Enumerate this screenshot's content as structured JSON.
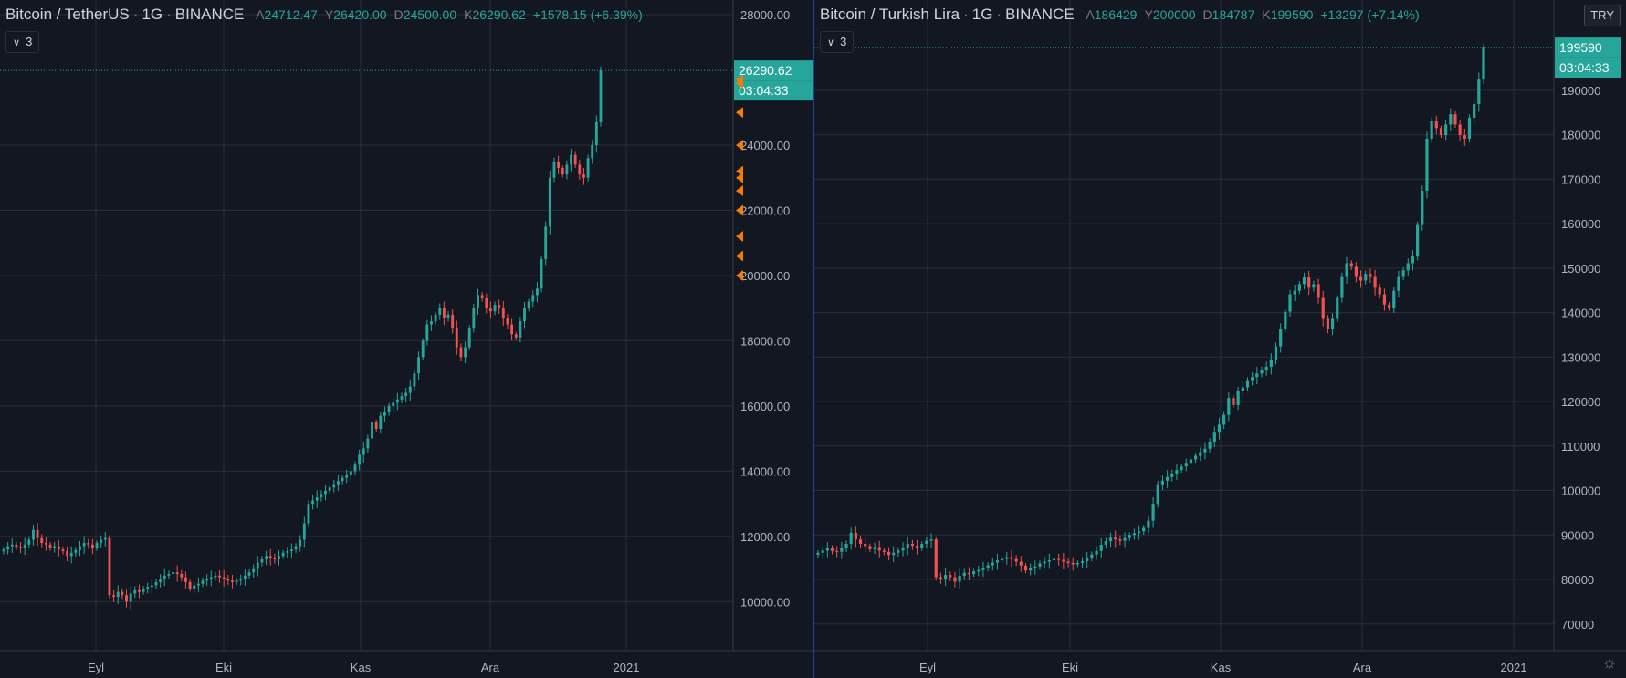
{
  "left": {
    "legend": {
      "symbol": "Bitcoin / TetherUS",
      "interval": "1G",
      "exchange": "BINANCE",
      "open_label": "A",
      "open": "24712.47",
      "high_label": "Y",
      "high": "26420.00",
      "low_label": "D",
      "low": "24500.00",
      "close_label": "K",
      "close": "26290.62",
      "change": "+1578.15 (+6.39%)"
    },
    "collapse_label": "3",
    "price_tag": "26290.62",
    "countdown": "03:04:33"
  },
  "right": {
    "legend": {
      "symbol": "Bitcoin / Turkish Lira",
      "interval": "1G",
      "exchange": "BINANCE",
      "open_label": "A",
      "open": "186429",
      "high_label": "Y",
      "high": "200000",
      "low_label": "D",
      "low": "184787",
      "close_label": "K",
      "close": "199590",
      "change": "+13297 (+7.14%)"
    },
    "collapse_label": "3",
    "currency_button": "TRY",
    "price_tag": "199590",
    "countdown": "03:04:33"
  },
  "colors": {
    "bg": "#131722",
    "up": "#26a69a",
    "down": "#ef5350",
    "grid": "#2a2e39",
    "text": "#b2b5be",
    "marker": "#f57c00",
    "divider": "#2962ff"
  },
  "chart_data": [
    {
      "type": "candlestick",
      "title": "Bitcoin / TetherUS",
      "xlabel": "",
      "ylabel": "",
      "x_ticks": [
        "Eyl",
        "Eki",
        "Kas",
        "Ara",
        "2021"
      ],
      "y_ticks": [
        "10000.00",
        "12000.00",
        "14000.00",
        "16000.00",
        "18000.00",
        "20000.00",
        "22000.00",
        "24000.00",
        "28000.00"
      ],
      "ylim": [
        8500,
        28000
      ],
      "grid": true,
      "series": [
        {
          "values": [
            11600,
            11700,
            11750,
            11680,
            11650,
            11750,
            11900,
            12200,
            11950,
            11800,
            11750,
            11650,
            11700,
            11600,
            11550,
            11400,
            11500,
            11580,
            11700,
            11800,
            11750,
            11650,
            11800,
            11900,
            11950,
            10200,
            10150,
            10300,
            10200,
            10000,
            10250,
            10350,
            10300,
            10400,
            10450,
            10500,
            10600,
            10700,
            10800,
            10850,
            10900,
            10850,
            10750,
            10600,
            10400,
            10500,
            10550,
            10650,
            10700,
            10750,
            10800,
            10750,
            10700,
            10650,
            10600,
            10650,
            10700,
            10800,
            10900,
            11000,
            11200,
            11300,
            11400,
            11350,
            11300,
            11400,
            11500,
            11550,
            11600,
            11700,
            11900,
            12400,
            13000,
            13100,
            13200,
            13300,
            13400,
            13500,
            13600,
            13700,
            13800,
            13900,
            14000,
            14200,
            14500,
            14700,
            15000,
            15500,
            15300,
            15700,
            15800,
            16000,
            16100,
            16200,
            16300,
            16400,
            16600,
            17000,
            17500,
            18000,
            18500,
            18600,
            18800,
            19000,
            18700,
            18800,
            18400,
            17800,
            17500,
            17800,
            18400,
            19000,
            19400,
            19300,
            19000,
            18900,
            19100,
            19000,
            18700,
            18500,
            18200,
            18100,
            18600,
            19000,
            19200,
            19400,
            19600,
            20500,
            21500,
            23000,
            23500,
            23300,
            23100,
            23400,
            23700,
            23400,
            23100,
            23000,
            23600,
            24000,
            24700,
            26290
          ]
        }
      ]
    },
    {
      "type": "candlestick",
      "title": "Bitcoin / Turkish Lira",
      "xlabel": "",
      "ylabel": "",
      "x_ticks": [
        "Eyl",
        "Eki",
        "Kas",
        "Ara",
        "2021"
      ],
      "y_ticks": [
        "70000",
        "80000",
        "90000",
        "100000",
        "110000",
        "120000",
        "130000",
        "140000",
        "150000",
        "160000",
        "170000",
        "180000",
        "190000"
      ],
      "ylim": [
        64000,
        207000
      ],
      "grid": true,
      "series": [
        {
          "values": [
            86000,
            86500,
            87000,
            86400,
            86200,
            87000,
            88000,
            90500,
            89000,
            88000,
            87500,
            86800,
            87300,
            86500,
            86200,
            85500,
            86000,
            86500,
            87200,
            88000,
            87600,
            87000,
            88000,
            88700,
            89000,
            80500,
            80200,
            81000,
            80500,
            79500,
            80800,
            81500,
            81200,
            81800,
            82100,
            82600,
            83200,
            83800,
            84300,
            84600,
            85000,
            84600,
            84000,
            83100,
            82000,
            82600,
            82900,
            83600,
            84000,
            84300,
            84600,
            84400,
            84000,
            83700,
            83400,
            83700,
            84100,
            84800,
            85600,
            86400,
            87800,
            88600,
            89400,
            89000,
            88700,
            89300,
            90000,
            90400,
            90800,
            91600,
            93200,
            97000,
            101400,
            102200,
            103000,
            103800,
            104600,
            105400,
            106200,
            107000,
            107800,
            108600,
            109400,
            111000,
            113200,
            114800,
            117000,
            120800,
            119200,
            122300,
            123200,
            124800,
            125500,
            126300,
            127100,
            127800,
            129300,
            132400,
            136300,
            140200,
            144100,
            144900,
            146400,
            147900,
            145600,
            146400,
            143300,
            138600,
            136300,
            138600,
            143300,
            148000,
            151100,
            150300,
            148000,
            147200,
            148700,
            148000,
            145600,
            144100,
            141800,
            141000,
            144900,
            148000,
            149500,
            151100,
            152600,
            159700,
            167400,
            179100,
            183000,
            181500,
            179900,
            182300,
            184600,
            182300,
            179900,
            179100,
            183800,
            186900,
            192400,
            199590
          ]
        }
      ]
    }
  ]
}
